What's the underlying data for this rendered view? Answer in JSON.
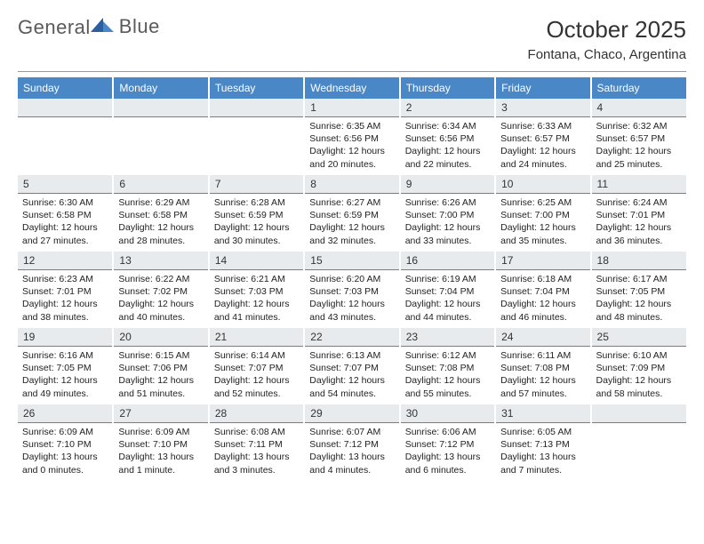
{
  "brand": {
    "name1": "General",
    "name2": "Blue"
  },
  "title": "October 2025",
  "location": "Fontana, Chaco, Argentina",
  "colors": {
    "header_bg": "#4a87c7",
    "header_text": "#ffffff",
    "daynum_bg": "#e8ebee",
    "cell_border": "#4a87c7",
    "text": "#222222",
    "title_text": "#333333",
    "divider": "#999999"
  },
  "typography": {
    "body_pt": 10.5,
    "daynum_pt": 12,
    "header_pt": 12,
    "title_pt": 26,
    "location_pt": 15
  },
  "weekdays": [
    "Sunday",
    "Monday",
    "Tuesday",
    "Wednesday",
    "Thursday",
    "Friday",
    "Saturday"
  ],
  "weeks": [
    [
      null,
      null,
      null,
      {
        "day": "1",
        "sunrise": "Sunrise: 6:35 AM",
        "sunset": "Sunset: 6:56 PM",
        "daylight": "Daylight: 12 hours and 20 minutes."
      },
      {
        "day": "2",
        "sunrise": "Sunrise: 6:34 AM",
        "sunset": "Sunset: 6:56 PM",
        "daylight": "Daylight: 12 hours and 22 minutes."
      },
      {
        "day": "3",
        "sunrise": "Sunrise: 6:33 AM",
        "sunset": "Sunset: 6:57 PM",
        "daylight": "Daylight: 12 hours and 24 minutes."
      },
      {
        "day": "4",
        "sunrise": "Sunrise: 6:32 AM",
        "sunset": "Sunset: 6:57 PM",
        "daylight": "Daylight: 12 hours and 25 minutes."
      }
    ],
    [
      {
        "day": "5",
        "sunrise": "Sunrise: 6:30 AM",
        "sunset": "Sunset: 6:58 PM",
        "daylight": "Daylight: 12 hours and 27 minutes."
      },
      {
        "day": "6",
        "sunrise": "Sunrise: 6:29 AM",
        "sunset": "Sunset: 6:58 PM",
        "daylight": "Daylight: 12 hours and 28 minutes."
      },
      {
        "day": "7",
        "sunrise": "Sunrise: 6:28 AM",
        "sunset": "Sunset: 6:59 PM",
        "daylight": "Daylight: 12 hours and 30 minutes."
      },
      {
        "day": "8",
        "sunrise": "Sunrise: 6:27 AM",
        "sunset": "Sunset: 6:59 PM",
        "daylight": "Daylight: 12 hours and 32 minutes."
      },
      {
        "day": "9",
        "sunrise": "Sunrise: 6:26 AM",
        "sunset": "Sunset: 7:00 PM",
        "daylight": "Daylight: 12 hours and 33 minutes."
      },
      {
        "day": "10",
        "sunrise": "Sunrise: 6:25 AM",
        "sunset": "Sunset: 7:00 PM",
        "daylight": "Daylight: 12 hours and 35 minutes."
      },
      {
        "day": "11",
        "sunrise": "Sunrise: 6:24 AM",
        "sunset": "Sunset: 7:01 PM",
        "daylight": "Daylight: 12 hours and 36 minutes."
      }
    ],
    [
      {
        "day": "12",
        "sunrise": "Sunrise: 6:23 AM",
        "sunset": "Sunset: 7:01 PM",
        "daylight": "Daylight: 12 hours and 38 minutes."
      },
      {
        "day": "13",
        "sunrise": "Sunrise: 6:22 AM",
        "sunset": "Sunset: 7:02 PM",
        "daylight": "Daylight: 12 hours and 40 minutes."
      },
      {
        "day": "14",
        "sunrise": "Sunrise: 6:21 AM",
        "sunset": "Sunset: 7:03 PM",
        "daylight": "Daylight: 12 hours and 41 minutes."
      },
      {
        "day": "15",
        "sunrise": "Sunrise: 6:20 AM",
        "sunset": "Sunset: 7:03 PM",
        "daylight": "Daylight: 12 hours and 43 minutes."
      },
      {
        "day": "16",
        "sunrise": "Sunrise: 6:19 AM",
        "sunset": "Sunset: 7:04 PM",
        "daylight": "Daylight: 12 hours and 44 minutes."
      },
      {
        "day": "17",
        "sunrise": "Sunrise: 6:18 AM",
        "sunset": "Sunset: 7:04 PM",
        "daylight": "Daylight: 12 hours and 46 minutes."
      },
      {
        "day": "18",
        "sunrise": "Sunrise: 6:17 AM",
        "sunset": "Sunset: 7:05 PM",
        "daylight": "Daylight: 12 hours and 48 minutes."
      }
    ],
    [
      {
        "day": "19",
        "sunrise": "Sunrise: 6:16 AM",
        "sunset": "Sunset: 7:05 PM",
        "daylight": "Daylight: 12 hours and 49 minutes."
      },
      {
        "day": "20",
        "sunrise": "Sunrise: 6:15 AM",
        "sunset": "Sunset: 7:06 PM",
        "daylight": "Daylight: 12 hours and 51 minutes."
      },
      {
        "day": "21",
        "sunrise": "Sunrise: 6:14 AM",
        "sunset": "Sunset: 7:07 PM",
        "daylight": "Daylight: 12 hours and 52 minutes."
      },
      {
        "day": "22",
        "sunrise": "Sunrise: 6:13 AM",
        "sunset": "Sunset: 7:07 PM",
        "daylight": "Daylight: 12 hours and 54 minutes."
      },
      {
        "day": "23",
        "sunrise": "Sunrise: 6:12 AM",
        "sunset": "Sunset: 7:08 PM",
        "daylight": "Daylight: 12 hours and 55 minutes."
      },
      {
        "day": "24",
        "sunrise": "Sunrise: 6:11 AM",
        "sunset": "Sunset: 7:08 PM",
        "daylight": "Daylight: 12 hours and 57 minutes."
      },
      {
        "day": "25",
        "sunrise": "Sunrise: 6:10 AM",
        "sunset": "Sunset: 7:09 PM",
        "daylight": "Daylight: 12 hours and 58 minutes."
      }
    ],
    [
      {
        "day": "26",
        "sunrise": "Sunrise: 6:09 AM",
        "sunset": "Sunset: 7:10 PM",
        "daylight": "Daylight: 13 hours and 0 minutes."
      },
      {
        "day": "27",
        "sunrise": "Sunrise: 6:09 AM",
        "sunset": "Sunset: 7:10 PM",
        "daylight": "Daylight: 13 hours and 1 minute."
      },
      {
        "day": "28",
        "sunrise": "Sunrise: 6:08 AM",
        "sunset": "Sunset: 7:11 PM",
        "daylight": "Daylight: 13 hours and 3 minutes."
      },
      {
        "day": "29",
        "sunrise": "Sunrise: 6:07 AM",
        "sunset": "Sunset: 7:12 PM",
        "daylight": "Daylight: 13 hours and 4 minutes."
      },
      {
        "day": "30",
        "sunrise": "Sunrise: 6:06 AM",
        "sunset": "Sunset: 7:12 PM",
        "daylight": "Daylight: 13 hours and 6 minutes."
      },
      {
        "day": "31",
        "sunrise": "Sunrise: 6:05 AM",
        "sunset": "Sunset: 7:13 PM",
        "daylight": "Daylight: 13 hours and 7 minutes."
      },
      null
    ]
  ]
}
